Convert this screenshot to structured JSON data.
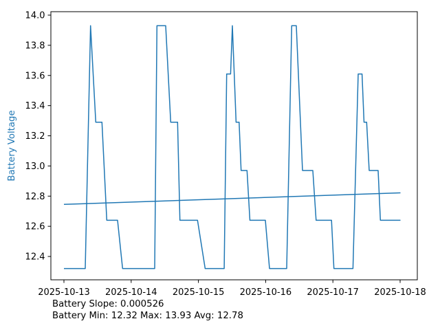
{
  "chart_data": {
    "type": "line",
    "title": "",
    "xlabel": "",
    "ylabel": "Battery Voltage",
    "ylabel_color": "#1f77b4",
    "grid": false,
    "legend": null,
    "ylim": [
      12.2452,
      14.0228
    ],
    "xlim_days": [
      -0.1943,
      5.2556
    ],
    "y_ticks": [
      {
        "value": 12.4,
        "label": "12.4"
      },
      {
        "value": 12.6,
        "label": "12.6"
      },
      {
        "value": 12.8,
        "label": "12.8"
      },
      {
        "value": 13.0,
        "label": "13.0"
      },
      {
        "value": 13.2,
        "label": "13.2"
      },
      {
        "value": 13.4,
        "label": "13.4"
      },
      {
        "value": 13.6,
        "label": "13.6"
      },
      {
        "value": 13.8,
        "label": "13.8"
      },
      {
        "value": 14.0,
        "label": "14.0"
      }
    ],
    "x_ticks": [
      {
        "day": 0,
        "label": "2025-10-13"
      },
      {
        "day": 1,
        "label": "2025-10-14"
      },
      {
        "day": 2,
        "label": "2025-10-15"
      },
      {
        "day": 3,
        "label": "2025-10-16"
      },
      {
        "day": 4,
        "label": "2025-10-17"
      },
      {
        "day": 5,
        "label": "2025-10-18"
      }
    ],
    "series": [
      {
        "name": "battery-voltage",
        "color": "#1f77b4",
        "width": 1.5,
        "points": [
          [
            0.0,
            12.32
          ],
          [
            0.317,
            12.32
          ],
          [
            0.396,
            13.93
          ],
          [
            0.473,
            13.29
          ],
          [
            0.565,
            13.29
          ],
          [
            0.637,
            12.64
          ],
          [
            0.798,
            12.64
          ],
          [
            0.872,
            12.32
          ],
          [
            1.35,
            12.32
          ],
          [
            1.383,
            13.93
          ],
          [
            1.513,
            13.93
          ],
          [
            1.588,
            13.29
          ],
          [
            1.69,
            13.29
          ],
          [
            1.725,
            12.64
          ],
          [
            1.987,
            12.64
          ],
          [
            2.1,
            12.32
          ],
          [
            2.383,
            12.32
          ],
          [
            2.42,
            13.61
          ],
          [
            2.478,
            13.61
          ],
          [
            2.505,
            13.93
          ],
          [
            2.56,
            13.29
          ],
          [
            2.605,
            13.29
          ],
          [
            2.635,
            12.97
          ],
          [
            2.723,
            12.97
          ],
          [
            2.766,
            12.64
          ],
          [
            2.996,
            12.64
          ],
          [
            3.057,
            12.32
          ],
          [
            3.313,
            12.32
          ],
          [
            3.388,
            13.93
          ],
          [
            3.456,
            13.93
          ],
          [
            3.548,
            12.97
          ],
          [
            3.701,
            12.97
          ],
          [
            3.75,
            12.64
          ],
          [
            3.98,
            12.64
          ],
          [
            4.015,
            12.32
          ],
          [
            4.299,
            12.32
          ],
          [
            4.376,
            13.61
          ],
          [
            4.434,
            13.61
          ],
          [
            4.463,
            13.29
          ],
          [
            4.502,
            13.29
          ],
          [
            4.54,
            12.97
          ],
          [
            4.673,
            12.97
          ],
          [
            4.707,
            12.64
          ],
          [
            5.005,
            12.64
          ]
        ]
      },
      {
        "name": "trend",
        "color": "#1f77b4",
        "width": 1.5,
        "points": [
          [
            0.0,
            12.745
          ],
          [
            5.005,
            12.822
          ]
        ]
      }
    ],
    "annotations": [
      "Battery Slope: 0.000526",
      "Battery Min: 12.32 Max: 13.93 Avg: 12.78"
    ],
    "stats": {
      "slope": "0.000526",
      "min": "12.32",
      "max": "13.93",
      "avg": "12.78"
    }
  },
  "colors": {
    "line": "#1f77b4",
    "spine": "#000000",
    "tick_text": "#000000",
    "background": "#ffffff"
  }
}
